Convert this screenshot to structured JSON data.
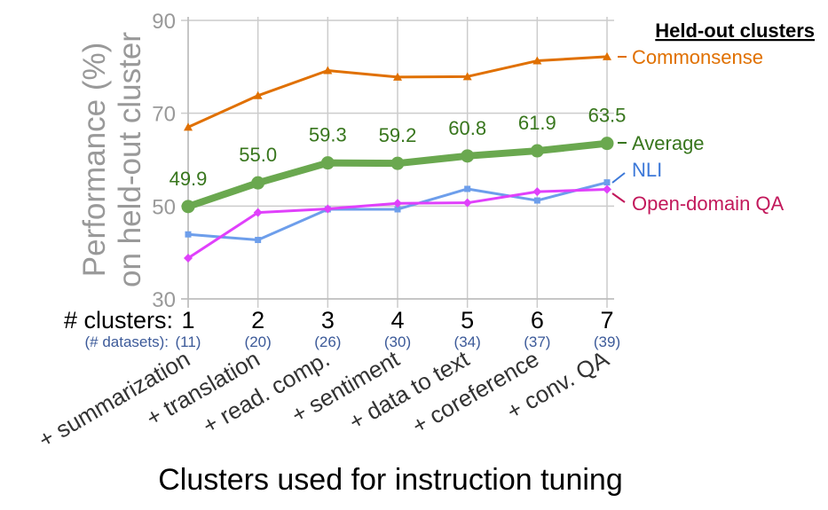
{
  "chart_data": {
    "type": "line",
    "xlabel": "Clusters used for instruction tuning",
    "ylabel_line1": "Performance (%)",
    "ylabel_line2": "on held-out cluster",
    "ylim": [
      30,
      90
    ],
    "yticks": [
      "30",
      "50",
      "70",
      "90"
    ],
    "grid": true,
    "legend_title": "Held-out clusters",
    "legend_placement": "right",
    "x_header": "# clusters:",
    "x_subheader": "(# datasets):",
    "x": [
      1,
      2,
      3,
      4,
      5,
      6,
      7
    ],
    "x_tick_labels": [
      "1",
      "2",
      "3",
      "4",
      "5",
      "6",
      "7"
    ],
    "datasets": [
      "(11)",
      "(20)",
      "(26)",
      "(30)",
      "(34)",
      "(37)",
      "(39)"
    ],
    "categories": [
      "+ summarization",
      "+ translation",
      "+ read. comp.",
      "+ sentiment",
      "+ data to text",
      "+ coreference",
      "+ conv. QA"
    ],
    "series": [
      {
        "name": "Commonsense",
        "color": "#e07000",
        "marker": "triangle",
        "values": [
          67.0,
          73.8,
          79.2,
          77.8,
          77.9,
          81.3,
          82.2
        ]
      },
      {
        "name": "Average",
        "color": "#6aa84f",
        "label_color": "#38761d",
        "marker": "circle",
        "bold": true,
        "values": [
          49.9,
          55.0,
          59.3,
          59.2,
          60.8,
          61.9,
          63.5
        ],
        "data_labels": [
          "49.9",
          "55.0",
          "59.3",
          "59.2",
          "60.8",
          "61.9",
          "63.5"
        ]
      },
      {
        "name": "NLI",
        "color": "#6d9eeb",
        "label_color": "#3c78d8",
        "marker": "square",
        "values": [
          43.9,
          42.7,
          49.3,
          49.3,
          53.7,
          51.2,
          55.1
        ]
      },
      {
        "name": "Open-domain QA",
        "color": "#e040fb",
        "label_color": "#c2185b",
        "marker": "diamond",
        "values": [
          38.8,
          48.6,
          49.4,
          50.6,
          50.7,
          53.1,
          53.6
        ]
      }
    ]
  }
}
